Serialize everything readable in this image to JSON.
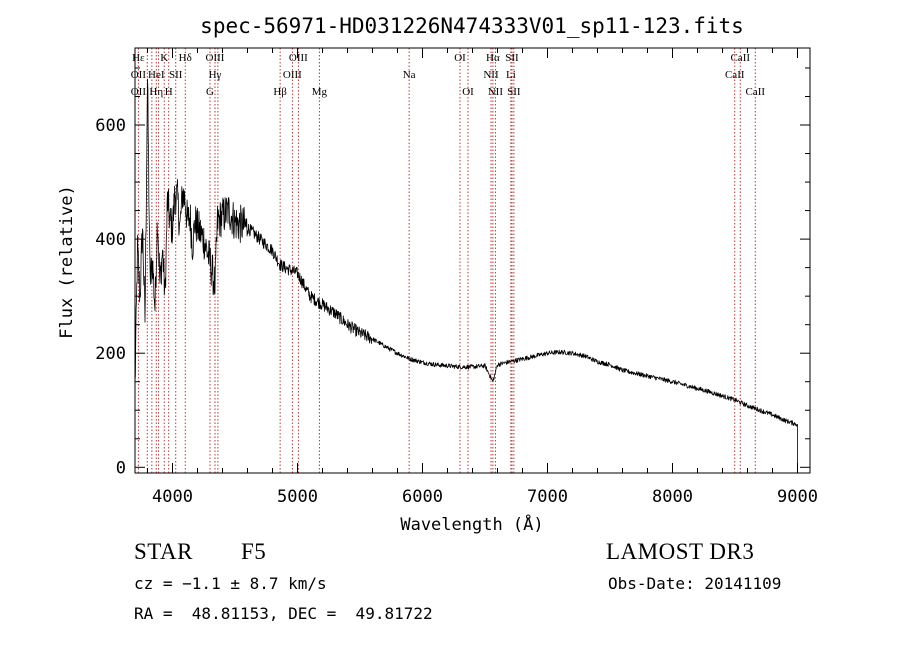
{
  "chart_data": {
    "type": "line",
    "title": "spec-56971-HD031226N474333V01_sp11-123.fits",
    "xlabel": "Wavelength (Å)",
    "ylabel": "Flux (relative)",
    "xlim": [
      3700,
      9100
    ],
    "ylim": [
      -10,
      735
    ],
    "x_ticks": [
      4000,
      5000,
      6000,
      7000,
      8000,
      9000
    ],
    "y_ticks": [
      0,
      200,
      400,
      600
    ],
    "x_tick_labels": [
      "4000",
      "5000",
      "6000",
      "7000",
      "8000",
      "9000"
    ],
    "y_tick_labels": [
      "0",
      "200",
      "400",
      "600"
    ],
    "grid": false,
    "series": [
      {
        "name": "flux",
        "x": [
          3700,
          3720,
          3740,
          3760,
          3780,
          3800,
          3820,
          3840,
          3860,
          3880,
          3900,
          3920,
          3940,
          3960,
          3980,
          4000,
          4020,
          4040,
          4060,
          4080,
          4100,
          4120,
          4140,
          4160,
          4180,
          4200,
          4250,
          4300,
          4340,
          4360,
          4400,
          4450,
          4500,
          4600,
          4700,
          4800,
          4861,
          4900,
          5000,
          5100,
          5200,
          5300,
          5400,
          5500,
          5600,
          5700,
          5800,
          5900,
          6000,
          6100,
          6200,
          6300,
          6400,
          6500,
          6563,
          6600,
          6700,
          6800,
          6900,
          7000,
          7100,
          7200,
          7300,
          7400,
          7500,
          7600,
          7700,
          7800,
          7900,
          8000,
          8100,
          8200,
          8300,
          8400,
          8500,
          8600,
          8700,
          8800,
          8900,
          9000
        ],
        "y": [
          140,
          380,
          300,
          420,
          260,
          680,
          330,
          360,
          280,
          440,
          320,
          380,
          300,
          470,
          430,
          420,
          480,
          470,
          420,
          480,
          470,
          430,
          440,
          390,
          430,
          420,
          400,
          360,
          320,
          430,
          440,
          450,
          430,
          420,
          400,
          380,
          355,
          350,
          340,
          300,
          285,
          270,
          250,
          235,
          225,
          212,
          200,
          190,
          184,
          180,
          178,
          176,
          176,
          178,
          150,
          180,
          185,
          190,
          195,
          200,
          202,
          200,
          195,
          185,
          180,
          170,
          165,
          160,
          155,
          150,
          144,
          138,
          132,
          125,
          118,
          108,
          100,
          92,
          82,
          75
        ]
      }
    ],
    "line_markers": [
      {
        "wavelength": 3727,
        "labels": [
          "Hε",
          "OII",
          "OII"
        ]
      },
      {
        "wavelength": 3798,
        "labels": [
          "",
          "",
          ""
        ]
      },
      {
        "wavelength": 3835,
        "labels": [
          "",
          "",
          ""
        ]
      },
      {
        "wavelength": 3870,
        "labels": [
          "",
          "HeI",
          "Hη"
        ]
      },
      {
        "wavelength": 3889,
        "labels": [
          "",
          "",
          ""
        ]
      },
      {
        "wavelength": 3934,
        "labels": [
          "K",
          "",
          ""
        ]
      },
      {
        "wavelength": 3970,
        "labels": [
          "",
          "",
          "H"
        ]
      },
      {
        "wavelength": 4026,
        "labels": [
          "",
          "SII",
          ""
        ]
      },
      {
        "wavelength": 4102,
        "labels": [
          "Hδ",
          "",
          ""
        ]
      },
      {
        "wavelength": 4300,
        "labels": [
          "",
          "",
          "G"
        ]
      },
      {
        "wavelength": 4340,
        "labels": [
          "OIII",
          "Hγ",
          ""
        ]
      },
      {
        "wavelength": 4363,
        "labels": [
          "",
          "",
          ""
        ]
      },
      {
        "wavelength": 4861,
        "labels": [
          "",
          "",
          "Hβ"
        ]
      },
      {
        "wavelength": 4959,
        "labels": [
          "",
          "OIII",
          ""
        ]
      },
      {
        "wavelength": 5007,
        "labels": [
          "OIII",
          "",
          ""
        ]
      },
      {
        "wavelength": 5175,
        "labels": [
          "",
          "",
          "Mg"
        ]
      },
      {
        "wavelength": 5893,
        "labels": [
          "",
          "Na",
          ""
        ]
      },
      {
        "wavelength": 6300,
        "labels": [
          "OI",
          "",
          ""
        ]
      },
      {
        "wavelength": 6364,
        "labels": [
          "",
          "",
          "OI"
        ]
      },
      {
        "wavelength": 6548,
        "labels": [
          "",
          "NII",
          ""
        ]
      },
      {
        "wavelength": 6563,
        "labels": [
          "Hα",
          "",
          ""
        ]
      },
      {
        "wavelength": 6583,
        "labels": [
          "",
          "",
          "NII"
        ]
      },
      {
        "wavelength": 6707,
        "labels": [
          "",
          "Li",
          ""
        ]
      },
      {
        "wavelength": 6716,
        "labels": [
          "SII",
          "",
          ""
        ]
      },
      {
        "wavelength": 6731,
        "labels": [
          "",
          "",
          "SII"
        ]
      },
      {
        "wavelength": 8498,
        "labels": [
          "",
          "CaII",
          ""
        ]
      },
      {
        "wavelength": 8542,
        "labels": [
          "CaII",
          "",
          ""
        ]
      },
      {
        "wavelength": 8662,
        "labels": [
          "",
          "",
          "CaII"
        ]
      }
    ]
  },
  "info": {
    "object_class": "STAR",
    "subclass": "F5",
    "survey": "LAMOST DR3",
    "redshift": "cz = −1.1 ± 8.7 km/s",
    "obs_date": "Obs-Date: 20141109",
    "coords": "RA =  48.81153, DEC =  49.81722"
  },
  "colors": {
    "axis": "#000000",
    "spectrum": "#000000",
    "marker": "#b22222",
    "background": "#ffffff"
  }
}
